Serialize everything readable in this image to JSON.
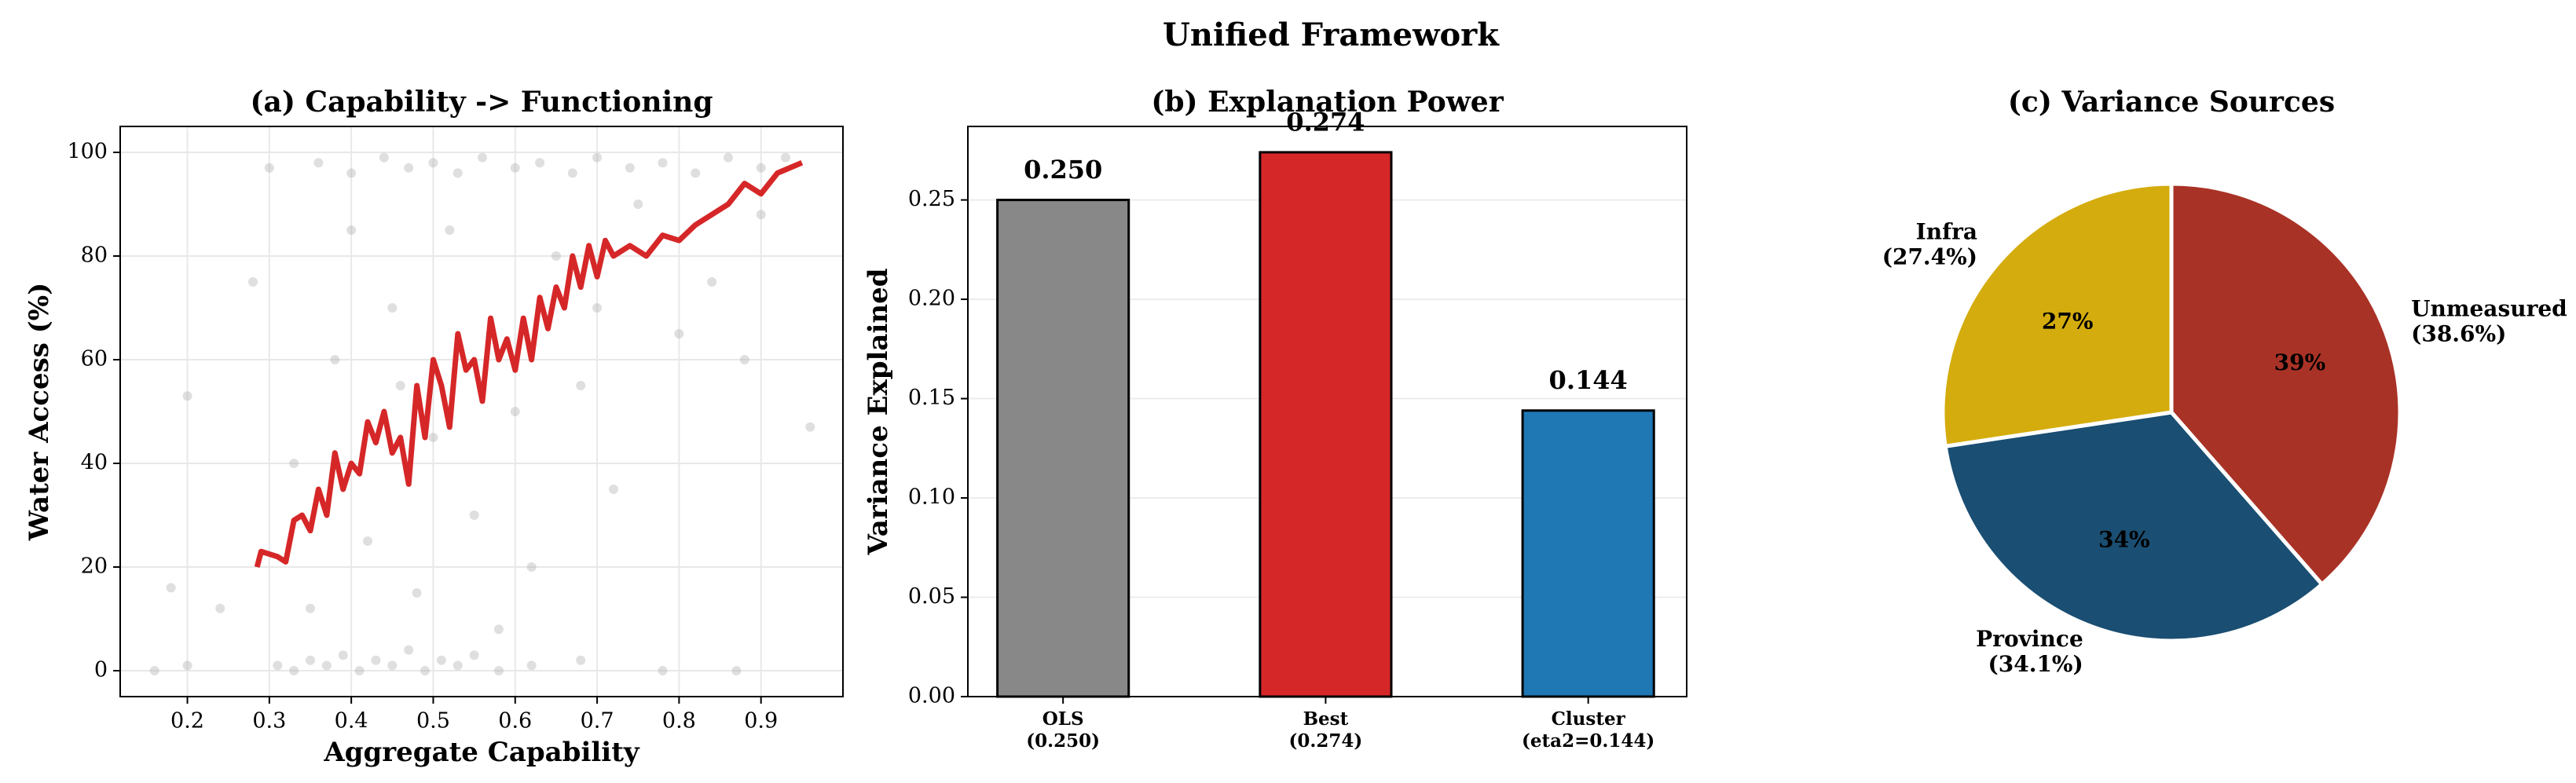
{
  "title": "Unified Framework",
  "chart_data": [
    {
      "type": "scatter",
      "title": "(a) Capability -> Functioning",
      "x_label": "Aggregate Capability",
      "y_label": "Water Access (%)",
      "xlim": [
        0.118,
        1.0
      ],
      "ylim": [
        -5,
        105
      ],
      "xticks": [
        0.2,
        0.3,
        0.4,
        0.5,
        0.6,
        0.7,
        0.8,
        0.9
      ],
      "yticks": [
        0,
        20,
        40,
        60,
        80,
        100
      ],
      "grid": true,
      "points": {
        "color": "#b0b0b0",
        "x": [
          0.31,
          0.33,
          0.35,
          0.37,
          0.39,
          0.41,
          0.43,
          0.45,
          0.47,
          0.49,
          0.51,
          0.53,
          0.55,
          0.58,
          0.62,
          0.68,
          0.16,
          0.2,
          0.78,
          0.87,
          0.3,
          0.36,
          0.4,
          0.44,
          0.47,
          0.5,
          0.53,
          0.56,
          0.6,
          0.63,
          0.67,
          0.7,
          0.74,
          0.78,
          0.82,
          0.86,
          0.9,
          0.93,
          0.2,
          0.28,
          0.33,
          0.38,
          0.42,
          0.45,
          0.48,
          0.5,
          0.52,
          0.55,
          0.57,
          0.6,
          0.62,
          0.65,
          0.68,
          0.72,
          0.75,
          0.8,
          0.84,
          0.88,
          0.96,
          0.4,
          0.35,
          0.46,
          0.58,
          0.7,
          0.9,
          0.24,
          0.18
        ],
        "y": [
          1,
          0,
          2,
          1,
          3,
          0,
          2,
          1,
          4,
          0,
          2,
          1,
          3,
          0,
          1,
          2,
          0,
          1,
          0,
          0,
          97,
          98,
          96,
          99,
          97,
          98,
          96,
          99,
          97,
          98,
          96,
          99,
          97,
          98,
          96,
          99,
          97,
          99,
          53,
          75,
          40,
          60,
          25,
          70,
          15,
          45,
          85,
          30,
          65,
          50,
          20,
          80,
          55,
          35,
          90,
          65,
          75,
          60,
          47,
          85,
          12,
          55,
          8,
          70,
          88,
          12,
          16
        ]
      },
      "line": {
        "color": "#d62728",
        "x": [
          0.285,
          0.29,
          0.31,
          0.32,
          0.33,
          0.34,
          0.35,
          0.36,
          0.37,
          0.38,
          0.39,
          0.4,
          0.41,
          0.42,
          0.43,
          0.44,
          0.45,
          0.46,
          0.47,
          0.48,
          0.49,
          0.5,
          0.51,
          0.52,
          0.53,
          0.54,
          0.55,
          0.56,
          0.57,
          0.58,
          0.59,
          0.6,
          0.61,
          0.62,
          0.63,
          0.64,
          0.65,
          0.66,
          0.67,
          0.68,
          0.69,
          0.7,
          0.71,
          0.72,
          0.74,
          0.76,
          0.78,
          0.8,
          0.82,
          0.84,
          0.86,
          0.88,
          0.9,
          0.92,
          0.95
        ],
        "y": [
          20,
          23,
          22,
          21,
          29,
          30,
          27,
          35,
          30,
          42,
          35,
          40,
          38,
          48,
          44,
          50,
          42,
          45,
          36,
          55,
          45,
          60,
          55,
          47,
          65,
          58,
          60,
          52,
          68,
          60,
          64,
          58,
          68,
          60,
          72,
          66,
          74,
          70,
          80,
          74,
          82,
          76,
          83,
          80,
          82,
          80,
          84,
          83,
          86,
          88,
          90,
          94,
          92,
          96,
          98
        ]
      }
    },
    {
      "type": "bar",
      "title": "(b) Explanation Power",
      "y_label": "Variance Explained",
      "categories": [
        [
          "OLS",
          "(0.250)"
        ],
        [
          "Best",
          "(0.274)"
        ],
        [
          "Cluster",
          "(eta2=0.144)"
        ]
      ],
      "values": [
        0.25,
        0.274,
        0.144
      ],
      "value_labels": [
        "0.250",
        "0.274",
        "0.144"
      ],
      "colors": [
        "#888888",
        "#d62728",
        "#1f77b4"
      ],
      "ylim": [
        0,
        0.287
      ],
      "yticks": [
        {
          "value": 0,
          "label": "0.00"
        },
        {
          "value": 0.05,
          "label": "0.05"
        },
        {
          "value": 0.1,
          "label": "0.10"
        },
        {
          "value": 0.15,
          "label": "0.15"
        },
        {
          "value": 0.2,
          "label": "0.20"
        },
        {
          "value": 0.25,
          "label": "0.25"
        }
      ],
      "grid": true
    },
    {
      "type": "pie",
      "title": "(c) Variance Sources",
      "labels": [
        [
          "Unmeasured",
          "(38.6%)"
        ],
        [
          "Province",
          "(34.1%)"
        ],
        [
          "Infra",
          "(27.4%)"
        ]
      ],
      "values": [
        38.6,
        34.1,
        27.4
      ],
      "value_labels": [
        "39%",
        "34%",
        "27%"
      ],
      "colors": [
        "#a93226",
        "#1a4e72",
        "#d4ac0d"
      ]
    }
  ]
}
